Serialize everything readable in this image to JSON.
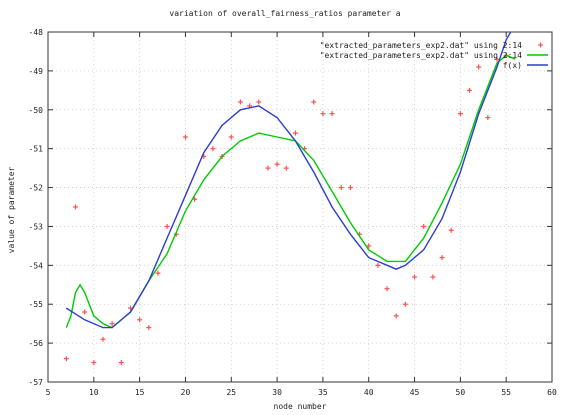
{
  "chart_data": {
    "type": "scatter",
    "title": "variation of overall_fairness_ratios parameter a",
    "xlabel": "node number",
    "ylabel": "value of parameter",
    "xlim": [
      5,
      60
    ],
    "ylim": [
      -57,
      -48
    ],
    "xticks": [
      5,
      10,
      15,
      20,
      25,
      30,
      35,
      40,
      45,
      50,
      55,
      60
    ],
    "yticks": [
      -48,
      -49,
      -50,
      -51,
      -52,
      -53,
      -54,
      -55,
      -56,
      -57
    ],
    "grid": true,
    "legend_position": "top-right",
    "series": [
      {
        "name": "\"extracted_parameters_exp2.dat\" using 2:14",
        "kind": "points",
        "color": "#ff5050",
        "points": [
          [
            7,
            -56.4
          ],
          [
            8,
            -52.5
          ],
          [
            9,
            -55.2
          ],
          [
            10,
            -56.5
          ],
          [
            11,
            -55.9
          ],
          [
            12,
            -55.5
          ],
          [
            13,
            -56.5
          ],
          [
            14,
            -55.1
          ],
          [
            15,
            -55.4
          ],
          [
            16,
            -55.6
          ],
          [
            17,
            -54.2
          ],
          [
            18,
            -53.0
          ],
          [
            19,
            -53.2
          ],
          [
            20,
            -50.7
          ],
          [
            21,
            -52.3
          ],
          [
            22,
            -51.2
          ],
          [
            23,
            -51.0
          ],
          [
            24,
            -51.2
          ],
          [
            25,
            -50.7
          ],
          [
            26,
            -49.8
          ],
          [
            27,
            -49.9
          ],
          [
            28,
            -49.8
          ],
          [
            29,
            -51.5
          ],
          [
            30,
            -51.4
          ],
          [
            31,
            -51.5
          ],
          [
            32,
            -50.6
          ],
          [
            33,
            -51.0
          ],
          [
            34,
            -49.8
          ],
          [
            35,
            -50.1
          ],
          [
            36,
            -50.1
          ],
          [
            37,
            -52.0
          ],
          [
            38,
            -52.0
          ],
          [
            39,
            -53.2
          ],
          [
            40,
            -53.5
          ],
          [
            41,
            -54.0
          ],
          [
            42,
            -54.6
          ],
          [
            43,
            -55.3
          ],
          [
            44,
            -55.0
          ],
          [
            45,
            -54.3
          ],
          [
            46,
            -53.0
          ],
          [
            47,
            -54.3
          ],
          [
            48,
            -53.8
          ],
          [
            49,
            -53.1
          ],
          [
            50,
            -50.1
          ],
          [
            51,
            -49.5
          ],
          [
            52,
            -48.9
          ],
          [
            53,
            -50.2
          ],
          [
            54,
            -48.7
          ],
          [
            55,
            -48.6
          ]
        ]
      },
      {
        "name": "\"extracted_parameters_exp2.dat\" using 2:14",
        "kind": "line",
        "color": "#00cc00",
        "points": [
          [
            7,
            -55.6
          ],
          [
            7.5,
            -55.3
          ],
          [
            8,
            -54.7
          ],
          [
            8.5,
            -54.5
          ],
          [
            9,
            -54.7
          ],
          [
            10,
            -55.3
          ],
          [
            11,
            -55.5
          ],
          [
            12,
            -55.6
          ],
          [
            14,
            -55.2
          ],
          [
            16,
            -54.4
          ],
          [
            18,
            -53.7
          ],
          [
            20,
            -52.6
          ],
          [
            22,
            -51.8
          ],
          [
            24,
            -51.2
          ],
          [
            26,
            -50.8
          ],
          [
            28,
            -50.6
          ],
          [
            30,
            -50.7
          ],
          [
            32,
            -50.8
          ],
          [
            34,
            -51.3
          ],
          [
            36,
            -52.1
          ],
          [
            38,
            -52.9
          ],
          [
            40,
            -53.6
          ],
          [
            42,
            -53.9
          ],
          [
            44,
            -53.9
          ],
          [
            46,
            -53.3
          ],
          [
            48,
            -52.4
          ],
          [
            50,
            -51.4
          ],
          [
            52,
            -50.0
          ],
          [
            54,
            -48.8
          ],
          [
            55,
            -48.6
          ],
          [
            56,
            -48.7
          ]
        ]
      },
      {
        "name": "f(x)",
        "kind": "line",
        "color": "#2a3fd1",
        "points": [
          [
            7,
            -55.1
          ],
          [
            9,
            -55.4
          ],
          [
            11,
            -55.6
          ],
          [
            12,
            -55.6
          ],
          [
            14,
            -55.2
          ],
          [
            16,
            -54.4
          ],
          [
            18,
            -53.3
          ],
          [
            20,
            -52.2
          ],
          [
            22,
            -51.1
          ],
          [
            24,
            -50.4
          ],
          [
            26,
            -50.0
          ],
          [
            28,
            -49.9
          ],
          [
            30,
            -50.2
          ],
          [
            32,
            -50.8
          ],
          [
            34,
            -51.6
          ],
          [
            36,
            -52.5
          ],
          [
            38,
            -53.2
          ],
          [
            40,
            -53.8
          ],
          [
            42,
            -54.0
          ],
          [
            43,
            -54.1
          ],
          [
            44,
            -54.0
          ],
          [
            46,
            -53.6
          ],
          [
            48,
            -52.8
          ],
          [
            50,
            -51.6
          ],
          [
            52,
            -50.1
          ],
          [
            54,
            -48.9
          ],
          [
            55,
            -48.2
          ],
          [
            56,
            -47.8
          ]
        ]
      }
    ]
  }
}
